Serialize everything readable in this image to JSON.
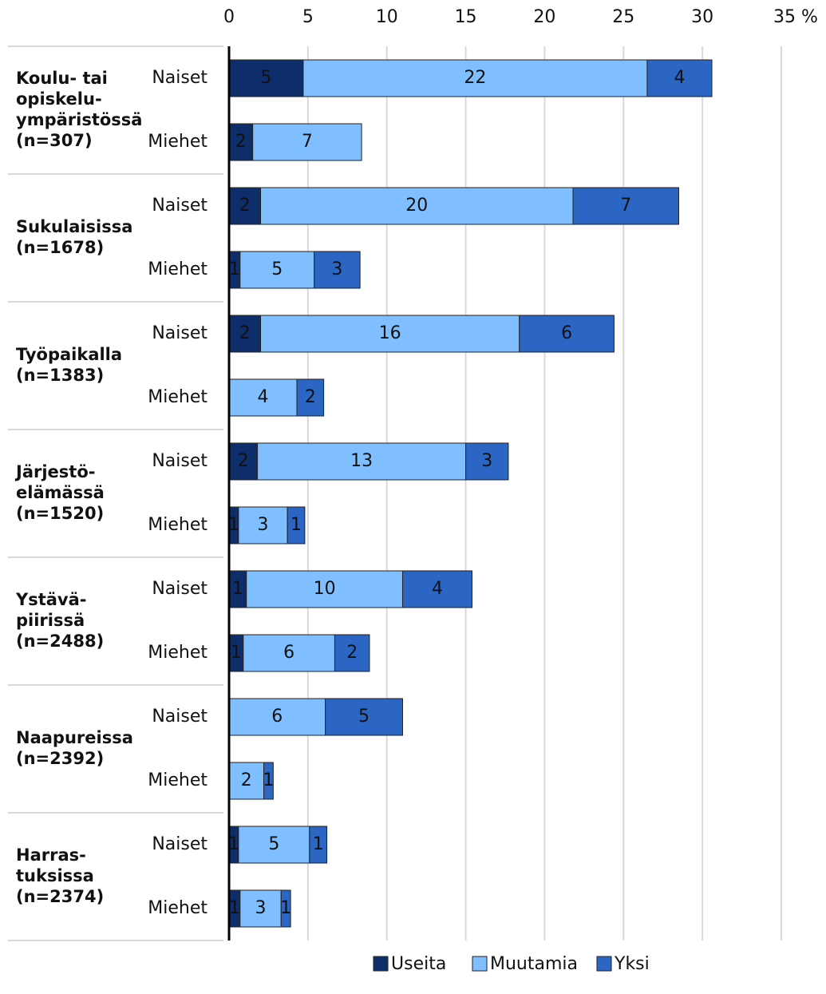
{
  "chart_data": {
    "type": "stacked-bar-horizontal",
    "groups": [
      [
        "Koulu- tai",
        "opiskelu-",
        "ympäristössä",
        "(n=307)"
      ],
      [
        "Sukulaisissa",
        "(n=1678)"
      ],
      [
        "Työpaikalla",
        "(n=1383)"
      ],
      [
        "Järjestö-",
        "elämässä",
        "(n=1520)"
      ],
      [
        "Ystävä-",
        "piirissä",
        "(n=2488)"
      ],
      [
        "Naapureissa",
        "(n=2392)"
      ],
      [
        "Harras-",
        "tuksissa",
        "(n=2374)"
      ]
    ],
    "categories": [
      "Naiset",
      "Miehet",
      "Naiset",
      "Miehet",
      "Naiset",
      "Miehet",
      "Naiset",
      "Miehet",
      "Naiset",
      "Miehet",
      "Naiset",
      "Miehet",
      "Naiset",
      "Miehet"
    ],
    "series": [
      {
        "name": "Useita",
        "color": "#0d2d6b",
        "values": [
          4.7,
          1.5,
          2.0,
          0.7,
          2.0,
          null,
          1.8,
          0.6,
          1.1,
          0.9,
          null,
          null,
          0.6,
          0.7
        ],
        "value_labels": [
          "5",
          "2",
          "2",
          "1",
          "2",
          null,
          "2",
          "1",
          "1",
          "1",
          null,
          null,
          "1",
          "1"
        ]
      },
      {
        "name": "Muutamia",
        "color": "#7fbfff",
        "values": [
          21.8,
          6.9,
          19.8,
          4.7,
          16.4,
          4.3,
          13.2,
          3.1,
          9.9,
          5.8,
          6.1,
          2.2,
          4.5,
          2.6
        ],
        "value_labels": [
          "22",
          "7",
          "20",
          "5",
          "16",
          "4",
          "13",
          "3",
          "10",
          "6",
          "6",
          "2",
          "5",
          "3"
        ]
      },
      {
        "name": "Yksi",
        "color": "#2b66c4",
        "values": [
          4.1,
          null,
          6.7,
          2.9,
          6.0,
          1.7,
          2.7,
          1.1,
          4.4,
          2.2,
          4.9,
          0.6,
          1.1,
          0.6
        ],
        "value_labels": [
          "4",
          null,
          "7",
          "3",
          "6",
          "2",
          "3",
          "1",
          "4",
          "2",
          "5",
          "1",
          "1",
          "1"
        ]
      }
    ],
    "xlim": [
      0,
      35
    ],
    "xticks": [
      0,
      5,
      10,
      15,
      20,
      25,
      30,
      {
        "value": 35,
        "label": "35 %"
      }
    ],
    "grid": true,
    "legend": "bottom"
  }
}
